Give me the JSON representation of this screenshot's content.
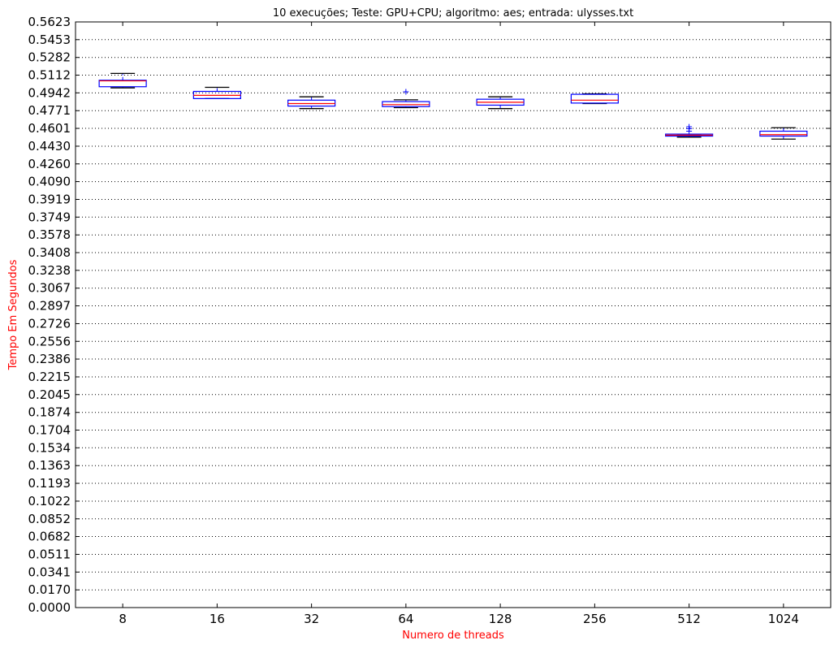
{
  "chart_data": {
    "type": "boxplot",
    "title": "10 execuções;  Teste: GPU+CPU;  algoritmo: aes;  entrada: ulysses.txt",
    "xlabel": "Numero de threads",
    "ylabel": "Tempo Em Segundos",
    "ylim": [
      0,
      0.5623
    ],
    "grid": "horizontal-dotted",
    "yticks": [
      "0.0000",
      "0.0170",
      "0.0341",
      "0.0511",
      "0.0682",
      "0.0852",
      "0.1022",
      "0.1193",
      "0.1363",
      "0.1534",
      "0.1704",
      "0.1874",
      "0.2045",
      "0.2215",
      "0.2386",
      "0.2556",
      "0.2726",
      "0.2897",
      "0.3067",
      "0.3238",
      "0.3408",
      "0.3578",
      "0.3749",
      "0.3919",
      "0.4090",
      "0.4260",
      "0.4430",
      "0.4601",
      "0.4771",
      "0.4942",
      "0.5112",
      "0.5282",
      "0.5453",
      "0.5623"
    ],
    "categories": [
      "8",
      "16",
      "32",
      "64",
      "128",
      "256",
      "512",
      "1024"
    ],
    "boxes": [
      {
        "whisker_low": 0.499,
        "q1": 0.5001,
        "median": 0.5057,
        "q3": 0.5063,
        "whisker_high": 0.5129,
        "outliers": []
      },
      {
        "whisker_low": 0.4887,
        "q1": 0.4887,
        "median": 0.4918,
        "q3": 0.4956,
        "whisker_high": 0.4995,
        "outliers": []
      },
      {
        "whisker_low": 0.4791,
        "q1": 0.4815,
        "median": 0.4839,
        "q3": 0.4872,
        "whisker_high": 0.4904,
        "outliers": []
      },
      {
        "whisker_low": 0.48,
        "q1": 0.481,
        "median": 0.4829,
        "q3": 0.4858,
        "whisker_high": 0.4875,
        "outliers": [
          0.4952
        ]
      },
      {
        "whisker_low": 0.4791,
        "q1": 0.4824,
        "median": 0.4852,
        "q3": 0.4881,
        "whisker_high": 0.4904,
        "outliers": []
      },
      {
        "whisker_low": 0.4839,
        "q1": 0.4844,
        "median": 0.4872,
        "q3": 0.4928,
        "whisker_high": 0.4933,
        "outliers": []
      },
      {
        "whisker_low": 0.4517,
        "q1": 0.4527,
        "median": 0.4536,
        "q3": 0.4546,
        "whisker_high": 0.4546,
        "outliers": [
          0.4574,
          0.4597,
          0.4616
        ]
      },
      {
        "whisker_low": 0.4498,
        "q1": 0.4527,
        "median": 0.4541,
        "q3": 0.4574,
        "whisker_high": 0.4607,
        "outliers": []
      }
    ],
    "colors": {
      "box": "#0000ff",
      "median": "#ff0000",
      "whisker": "#000000",
      "outlier": "#0000ff",
      "grid": "#000000",
      "label": "#ff0000"
    }
  }
}
